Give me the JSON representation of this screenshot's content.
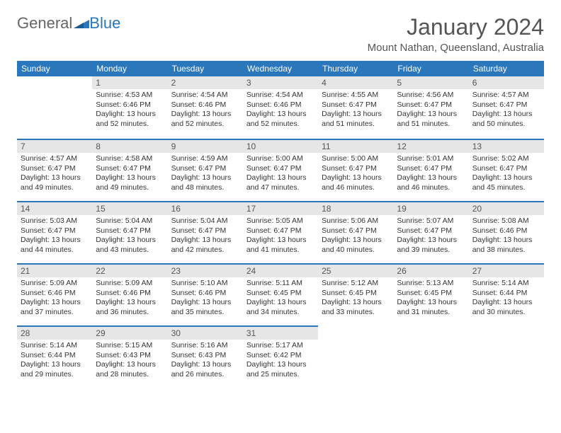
{
  "logo": {
    "left": "General",
    "right": "Blue"
  },
  "title": "January 2024",
  "location": "Mount Nathan, Queensland, Australia",
  "colors": {
    "header_bg": "#2a77bb",
    "header_text": "#ffffff",
    "day_num_bg": "#e6e6e6",
    "day_border": "#2a77bb",
    "body_text": "#333333",
    "title_text": "#555555"
  },
  "weekdays": [
    "Sunday",
    "Monday",
    "Tuesday",
    "Wednesday",
    "Thursday",
    "Friday",
    "Saturday"
  ],
  "weeks": [
    [
      null,
      {
        "n": "1",
        "sr": "4:53 AM",
        "ss": "6:46 PM",
        "dl": "13 hours and 52 minutes."
      },
      {
        "n": "2",
        "sr": "4:54 AM",
        "ss": "6:46 PM",
        "dl": "13 hours and 52 minutes."
      },
      {
        "n": "3",
        "sr": "4:54 AM",
        "ss": "6:46 PM",
        "dl": "13 hours and 52 minutes."
      },
      {
        "n": "4",
        "sr": "4:55 AM",
        "ss": "6:47 PM",
        "dl": "13 hours and 51 minutes."
      },
      {
        "n": "5",
        "sr": "4:56 AM",
        "ss": "6:47 PM",
        "dl": "13 hours and 51 minutes."
      },
      {
        "n": "6",
        "sr": "4:57 AM",
        "ss": "6:47 PM",
        "dl": "13 hours and 50 minutes."
      }
    ],
    [
      {
        "n": "7",
        "sr": "4:57 AM",
        "ss": "6:47 PM",
        "dl": "13 hours and 49 minutes."
      },
      {
        "n": "8",
        "sr": "4:58 AM",
        "ss": "6:47 PM",
        "dl": "13 hours and 49 minutes."
      },
      {
        "n": "9",
        "sr": "4:59 AM",
        "ss": "6:47 PM",
        "dl": "13 hours and 48 minutes."
      },
      {
        "n": "10",
        "sr": "5:00 AM",
        "ss": "6:47 PM",
        "dl": "13 hours and 47 minutes."
      },
      {
        "n": "11",
        "sr": "5:00 AM",
        "ss": "6:47 PM",
        "dl": "13 hours and 46 minutes."
      },
      {
        "n": "12",
        "sr": "5:01 AM",
        "ss": "6:47 PM",
        "dl": "13 hours and 46 minutes."
      },
      {
        "n": "13",
        "sr": "5:02 AM",
        "ss": "6:47 PM",
        "dl": "13 hours and 45 minutes."
      }
    ],
    [
      {
        "n": "14",
        "sr": "5:03 AM",
        "ss": "6:47 PM",
        "dl": "13 hours and 44 minutes."
      },
      {
        "n": "15",
        "sr": "5:04 AM",
        "ss": "6:47 PM",
        "dl": "13 hours and 43 minutes."
      },
      {
        "n": "16",
        "sr": "5:04 AM",
        "ss": "6:47 PM",
        "dl": "13 hours and 42 minutes."
      },
      {
        "n": "17",
        "sr": "5:05 AM",
        "ss": "6:47 PM",
        "dl": "13 hours and 41 minutes."
      },
      {
        "n": "18",
        "sr": "5:06 AM",
        "ss": "6:47 PM",
        "dl": "13 hours and 40 minutes."
      },
      {
        "n": "19",
        "sr": "5:07 AM",
        "ss": "6:47 PM",
        "dl": "13 hours and 39 minutes."
      },
      {
        "n": "20",
        "sr": "5:08 AM",
        "ss": "6:46 PM",
        "dl": "13 hours and 38 minutes."
      }
    ],
    [
      {
        "n": "21",
        "sr": "5:09 AM",
        "ss": "6:46 PM",
        "dl": "13 hours and 37 minutes."
      },
      {
        "n": "22",
        "sr": "5:09 AM",
        "ss": "6:46 PM",
        "dl": "13 hours and 36 minutes."
      },
      {
        "n": "23",
        "sr": "5:10 AM",
        "ss": "6:46 PM",
        "dl": "13 hours and 35 minutes."
      },
      {
        "n": "24",
        "sr": "5:11 AM",
        "ss": "6:45 PM",
        "dl": "13 hours and 34 minutes."
      },
      {
        "n": "25",
        "sr": "5:12 AM",
        "ss": "6:45 PM",
        "dl": "13 hours and 33 minutes."
      },
      {
        "n": "26",
        "sr": "5:13 AM",
        "ss": "6:45 PM",
        "dl": "13 hours and 31 minutes."
      },
      {
        "n": "27",
        "sr": "5:14 AM",
        "ss": "6:44 PM",
        "dl": "13 hours and 30 minutes."
      }
    ],
    [
      {
        "n": "28",
        "sr": "5:14 AM",
        "ss": "6:44 PM",
        "dl": "13 hours and 29 minutes."
      },
      {
        "n": "29",
        "sr": "5:15 AM",
        "ss": "6:43 PM",
        "dl": "13 hours and 28 minutes."
      },
      {
        "n": "30",
        "sr": "5:16 AM",
        "ss": "6:43 PM",
        "dl": "13 hours and 26 minutes."
      },
      {
        "n": "31",
        "sr": "5:17 AM",
        "ss": "6:42 PM",
        "dl": "13 hours and 25 minutes."
      },
      null,
      null,
      null
    ]
  ]
}
